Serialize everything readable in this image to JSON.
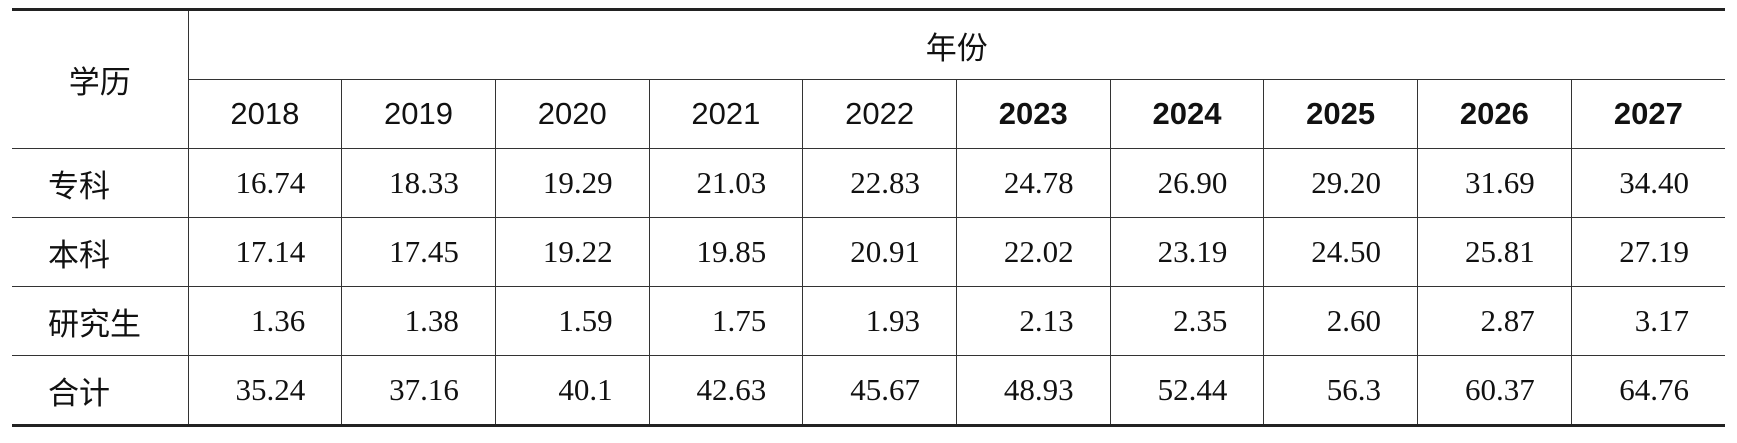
{
  "table": {
    "header": {
      "row_label": "学历",
      "group_label": "年份",
      "years": [
        "2018",
        "2019",
        "2020",
        "2021",
        "2022",
        "2023",
        "2024",
        "2025",
        "2026",
        "2027"
      ]
    },
    "rows": [
      [
        "专科",
        "16.74",
        "18.33",
        "19.29",
        "21.03",
        "22.83",
        "24.78",
        "26.90",
        "29.20",
        "31.69",
        "34.40"
      ],
      [
        "本科",
        "17.14",
        "17.45",
        "19.22",
        "19.85",
        "20.91",
        "22.02",
        "23.19",
        "24.50",
        "25.81",
        "27.19"
      ],
      [
        "研究生",
        "1.36",
        "1.38",
        "1.59",
        "1.75",
        "1.93",
        "2.13",
        "2.35",
        "2.60",
        "2.87",
        "3.17"
      ],
      [
        "合计",
        "35.24",
        "37.16",
        "40.1",
        "42.63",
        "45.67",
        "48.93",
        "52.44",
        "56.3",
        "60.37",
        "64.76"
      ]
    ]
  }
}
